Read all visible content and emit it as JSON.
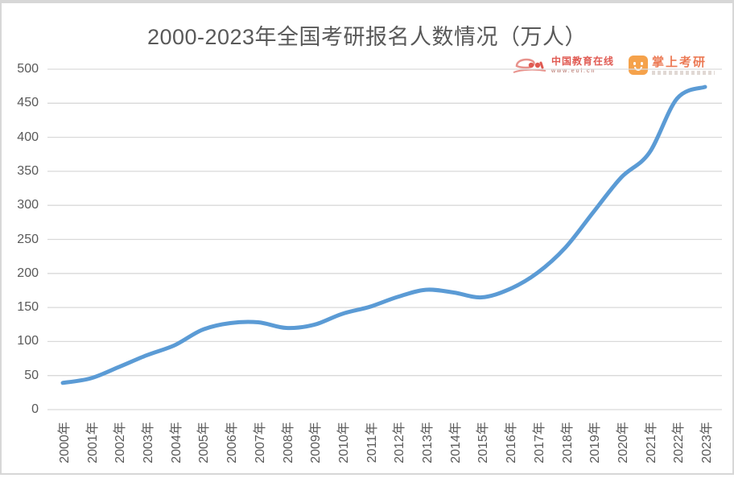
{
  "chart_data": {
    "type": "line",
    "title": "2000-2023年全国考研报名人数情况（万人）",
    "categories": [
      "2000年",
      "2001年",
      "2002年",
      "2003年",
      "2004年",
      "2005年",
      "2006年",
      "2007年",
      "2008年",
      "2009年",
      "2010年",
      "2011年",
      "2012年",
      "2013年",
      "2014年",
      "2015年",
      "2016年",
      "2017年",
      "2018年",
      "2019年",
      "2020年",
      "2021年",
      "2022年",
      "2023年"
    ],
    "values": [
      39.2,
      46,
      62.4,
      79.7,
      94.5,
      117.2,
      127.1,
      128.2,
      120,
      124.6,
      140.6,
      151.1,
      165.6,
      176,
      172,
      164.9,
      177,
      201,
      238,
      290,
      341,
      377,
      457,
      474
    ],
    "ylim": [
      0,
      500
    ],
    "yticks": [
      0,
      50,
      100,
      150,
      200,
      250,
      300,
      350,
      400,
      450,
      500
    ],
    "xlabel": "",
    "ylabel": "",
    "legend_position": "none",
    "grid": "horizontal",
    "smoothed": true,
    "line_color": "#5B9BD5",
    "gridline_color": "#D9D9D9",
    "label_color": "#595959"
  },
  "logos": {
    "eol": {
      "name": "中国教育在线",
      "url": "www.eol.cn"
    },
    "zsky": {
      "name": "掌上考研"
    }
  }
}
